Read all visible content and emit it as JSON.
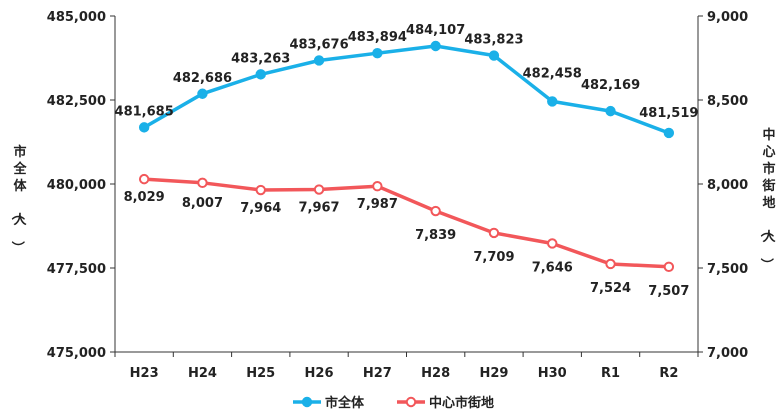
{
  "chart_data": {
    "type": "line",
    "categories": [
      "H23",
      "H24",
      "H25",
      "H26",
      "H27",
      "H28",
      "H29",
      "H30",
      "R1",
      "R2"
    ],
    "series": [
      {
        "name": "市全体",
        "axis": "left",
        "color": "#1ab0e8",
        "marker": "filled-circle",
        "values": [
          481685,
          482686,
          483263,
          483676,
          483894,
          484107,
          483823,
          482458,
          482169,
          481519
        ],
        "labels": [
          "481,685",
          "482,686",
          "483,263",
          "483,676",
          "483,894",
          "484,107",
          "483,823",
          "482,458",
          "482,169",
          "481,519"
        ]
      },
      {
        "name": "中心市街地",
        "axis": "right",
        "color": "#f2575a",
        "marker": "open-circle",
        "values": [
          8029,
          8007,
          7964,
          7967,
          7987,
          7839,
          7709,
          7646,
          7524,
          7507
        ],
        "labels": [
          "8,029",
          "8,007",
          "7,964",
          "7,967",
          "7,987",
          "7,839",
          "7,709",
          "7,646",
          "7,524",
          "7,507"
        ]
      }
    ],
    "ylabel_left": "市全体（人）",
    "ylabel_right": "中心市街地（人）",
    "ylim_left": [
      475000,
      485000
    ],
    "ylim_right": [
      7000,
      9000
    ],
    "yticks_left": [
      475000,
      477500,
      480000,
      482500,
      485000
    ],
    "yticks_left_labels": [
      "475,000",
      "477,500",
      "480,000",
      "482,500",
      "485,000"
    ],
    "yticks_right": [
      7000,
      7500,
      8000,
      8500,
      9000
    ],
    "yticks_right_labels": [
      "7,000",
      "7,500",
      "8,000",
      "8,500",
      "9,000"
    ],
    "grid": false,
    "legend_position": "bottom-center"
  }
}
